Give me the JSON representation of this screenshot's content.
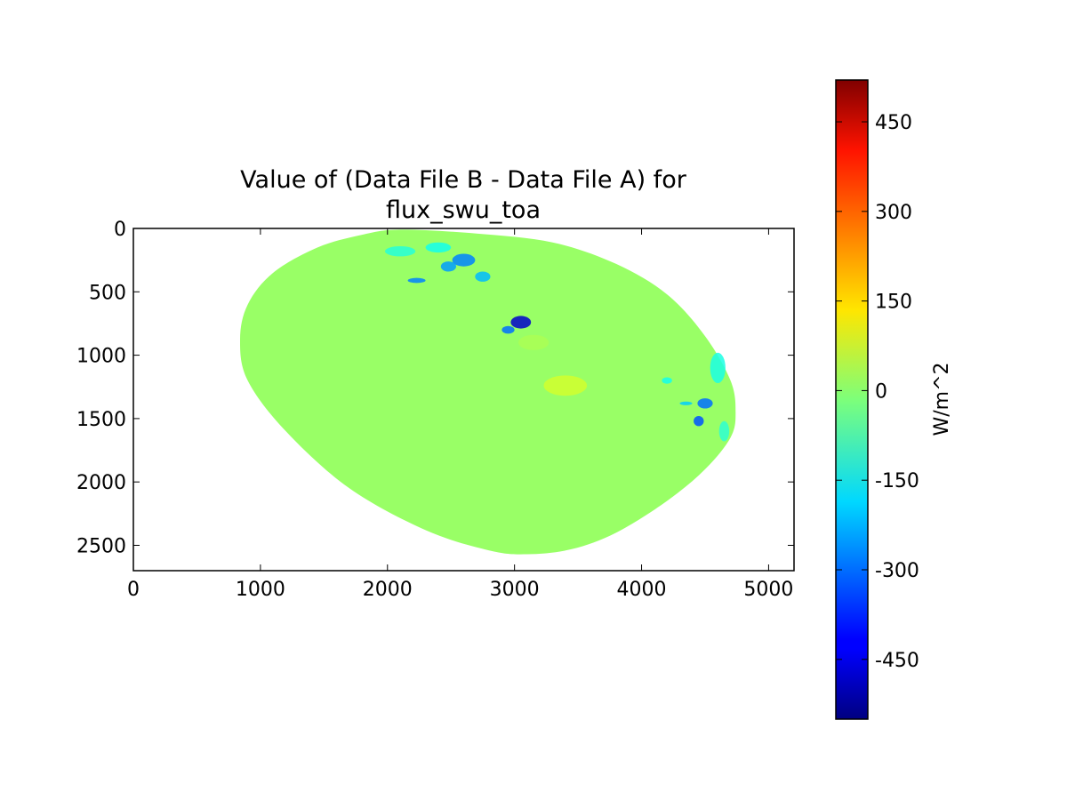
{
  "chart_data": {
    "type": "heatmap",
    "title_lines": [
      "Value of (Data File B - Data File A) for",
      "flux_swu_toa"
    ],
    "xlabel": "",
    "ylabel": "",
    "x_ticks": [
      0,
      1000,
      2000,
      3000,
      4000,
      5000
    ],
    "x_tick_labels": [
      "0",
      "1000",
      "2000",
      "3000",
      "4000",
      "5000"
    ],
    "y_ticks": [
      0,
      500,
      1000,
      1500,
      2000,
      2500
    ],
    "y_tick_labels": [
      "0",
      "500",
      "1000",
      "1500",
      "2000",
      "2500"
    ],
    "xlim": [
      0,
      5200
    ],
    "ylim": [
      2700,
      0
    ],
    "y_inverted": true,
    "grid": false,
    "colormap": "jet",
    "colorbar": {
      "label": "W/m^2",
      "vmin": -550,
      "vmax": 520,
      "ticks": [
        450,
        300,
        150,
        0,
        -150,
        -300,
        -450
      ],
      "tick_labels": [
        "450",
        "300",
        "150",
        "0",
        "-150",
        "-300",
        "-450"
      ]
    },
    "disk": {
      "fill_value": 0,
      "fill_color": "#99ff66",
      "outline": [
        [
          2100,
          10
        ],
        [
          2700,
          40
        ],
        [
          3300,
          110
        ],
        [
          3800,
          280
        ],
        [
          4200,
          520
        ],
        [
          4500,
          850
        ],
        [
          4700,
          1200
        ],
        [
          4740,
          1450
        ],
        [
          4700,
          1650
        ],
        [
          4500,
          1900
        ],
        [
          4200,
          2150
        ],
        [
          3800,
          2400
        ],
        [
          3450,
          2530
        ],
        [
          3100,
          2570
        ],
        [
          2800,
          2540
        ],
        [
          2300,
          2380
        ],
        [
          1700,
          2050
        ],
        [
          1200,
          1600
        ],
        [
          900,
          1200
        ],
        [
          840,
          880
        ],
        [
          900,
          600
        ],
        [
          1100,
          350
        ],
        [
          1450,
          150
        ],
        [
          1800,
          50
        ]
      ]
    },
    "anomalies": [
      {
        "x": 2600,
        "y": 250,
        "rx": 90,
        "ry": 50,
        "value": -280
      },
      {
        "x": 2480,
        "y": 300,
        "rx": 60,
        "ry": 40,
        "value": -250
      },
      {
        "x": 2230,
        "y": 410,
        "rx": 70,
        "ry": 20,
        "value": -280
      },
      {
        "x": 2750,
        "y": 380,
        "rx": 60,
        "ry": 40,
        "value": -220
      },
      {
        "x": 3050,
        "y": 740,
        "rx": 80,
        "ry": 50,
        "value": -470
      },
      {
        "x": 2950,
        "y": 800,
        "rx": 50,
        "ry": 30,
        "value": -300
      },
      {
        "x": 2100,
        "y": 180,
        "rx": 120,
        "ry": 40,
        "value": -110
      },
      {
        "x": 2400,
        "y": 150,
        "rx": 100,
        "ry": 40,
        "value": -130
      },
      {
        "x": 4500,
        "y": 1380,
        "rx": 60,
        "ry": 40,
        "value": -300
      },
      {
        "x": 4450,
        "y": 1520,
        "rx": 40,
        "ry": 40,
        "value": -330
      },
      {
        "x": 4350,
        "y": 1380,
        "rx": 50,
        "ry": 15,
        "value": -200
      },
      {
        "x": 4200,
        "y": 1200,
        "rx": 40,
        "ry": 25,
        "value": -130
      },
      {
        "x": 3400,
        "y": 1240,
        "rx": 170,
        "ry": 80,
        "value": 70
      },
      {
        "x": 3150,
        "y": 900,
        "rx": 120,
        "ry": 60,
        "value": 30
      },
      {
        "x": 4600,
        "y": 1100,
        "rx": 60,
        "ry": 120,
        "value": -120
      },
      {
        "x": 4650,
        "y": 1600,
        "rx": 40,
        "ry": 80,
        "value": -100
      }
    ]
  }
}
